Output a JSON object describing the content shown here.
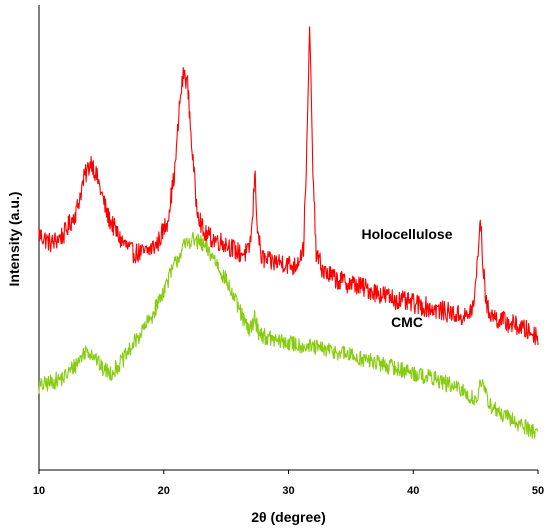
{
  "chart_data": {
    "type": "line",
    "title": "",
    "xlabel": "2θ (degree)",
    "ylabel": "Intensity (a.u.)",
    "xlim": [
      10,
      50
    ],
    "x_ticks": [
      10,
      20,
      30,
      40,
      50
    ],
    "y_ticks": [],
    "ylim": [
      0,
      100
    ],
    "grid": false,
    "series": [
      {
        "name": "Holocellulose",
        "color": "#ff0000",
        "noise": 2.2,
        "x": [
          10,
          11,
          12,
          13,
          13.6,
          14.2,
          14.8,
          15.5,
          16.5,
          17.5,
          18.5,
          19.5,
          20.3,
          20.9,
          21.3,
          21.6,
          21.9,
          22.2,
          22.6,
          23.2,
          24,
          25,
          26,
          26.8,
          27.1,
          27.3,
          27.5,
          27.8,
          28.5,
          29.5,
          30.5,
          31.2,
          31.5,
          31.7,
          31.9,
          32.2,
          32.8,
          34,
          35.5,
          37,
          38.5,
          40,
          41.5,
          43,
          44.3,
          44.9,
          45.2,
          45.4,
          45.6,
          45.9,
          46.5,
          47.5,
          48.5,
          50
        ],
        "y": [
          51,
          49,
          51,
          56,
          63,
          67,
          62,
          55,
          50,
          47,
          47,
          49,
          54,
          65,
          80,
          86,
          84,
          72,
          58,
          51,
          50,
          49,
          47,
          47,
          53,
          65,
          53,
          46,
          45,
          45,
          44,
          48,
          72,
          97,
          70,
          47,
          43,
          41,
          40,
          38.5,
          37,
          36,
          35,
          34,
          33,
          36,
          48,
          54,
          44,
          35,
          33,
          32,
          31,
          29
        ]
      },
      {
        "name": "CMC",
        "color": "#88cc11",
        "noise": 1.8,
        "x": [
          10,
          11,
          12,
          13,
          13.8,
          14.4,
          15,
          15.8,
          16.8,
          18,
          19,
          20,
          20.8,
          21.5,
          22.2,
          23,
          24,
          25,
          26,
          26.8,
          27,
          27.3,
          27.6,
          28,
          29,
          30,
          32,
          34,
          36,
          38,
          40,
          42,
          44,
          45,
          45.4,
          45.7,
          46.2,
          47,
          48.5,
          50
        ],
        "y": [
          18,
          19,
          20,
          23,
          26,
          25,
          22,
          21,
          24,
          29,
          33,
          39,
          44,
          48,
          50,
          49,
          46,
          41,
          35,
          30,
          31,
          33,
          30,
          29,
          28,
          27.5,
          26.5,
          25.5,
          24,
          22.5,
          21,
          19.5,
          17,
          15,
          19,
          17,
          14,
          12,
          10,
          8
        ]
      }
    ],
    "annotations": [
      {
        "text": "Holocellulose",
        "series": "Holocellulose",
        "x": 39.5,
        "y": 50
      },
      {
        "text": "CMC",
        "series": "CMC",
        "x": 39.5,
        "y": 31
      }
    ]
  }
}
